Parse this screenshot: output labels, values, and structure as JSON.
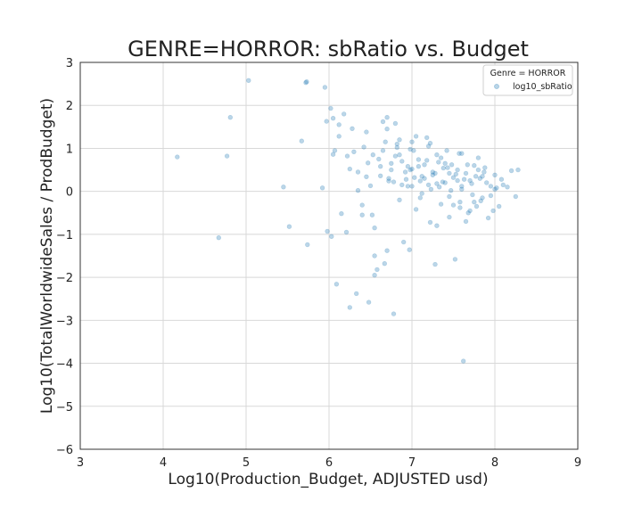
{
  "chart_data": {
    "type": "scatter",
    "title": "GENRE=HORROR: sbRatio vs. Budget",
    "xlabel": "Log10(Production_Budget, ADJUSTED usd)",
    "ylabel": "Log10(TotalWorldwideSales / ProdBudget)",
    "xlim": [
      3,
      9
    ],
    "ylim": [
      -6,
      3
    ],
    "x_ticks": [
      3,
      4,
      5,
      6,
      7,
      8,
      9
    ],
    "y_ticks": [
      -6,
      -5,
      -4,
      -3,
      -2,
      -1,
      0,
      1,
      2,
      3
    ],
    "grid": true,
    "legend": {
      "title": "Genre = HORROR",
      "placement": "top-right",
      "entries": [
        "log10_sbRatio"
      ]
    },
    "colors": {
      "marker": "#1f77b4",
      "grid": "#d8d8d8",
      "axis": "#333333"
    },
    "series": [
      {
        "name": "log10_sbRatio",
        "x": [
          4.17,
          4.67,
          4.77,
          4.81,
          5.03,
          5.45,
          5.52,
          5.67,
          5.72,
          5.73,
          5.74,
          5.92,
          5.95,
          5.97,
          5.98,
          6.02,
          6.03,
          6.05,
          6.07,
          6.09,
          6.12,
          6.15,
          6.18,
          6.21,
          6.25,
          6.28,
          6.3,
          6.33,
          6.35,
          6.4,
          6.42,
          6.45,
          6.47,
          6.48,
          6.5,
          6.52,
          6.55,
          6.58,
          6.62,
          6.65,
          6.67,
          6.7,
          6.72,
          6.75,
          6.78,
          6.8,
          6.82,
          6.85,
          6.88,
          6.9,
          6.93,
          6.95,
          6.97,
          7.0,
          7.02,
          7.05,
          7.08,
          7.1,
          7.12,
          7.15,
          7.18,
          7.2,
          7.22,
          7.25,
          7.28,
          7.3,
          7.33,
          7.35,
          7.38,
          7.4,
          7.42,
          7.45,
          7.48,
          7.5,
          7.52,
          7.55,
          7.58,
          7.6,
          7.62,
          7.65,
          7.68,
          7.7,
          7.72,
          7.75,
          7.78,
          7.8,
          7.82,
          7.85,
          7.88,
          7.9,
          7.92,
          7.95,
          7.98,
          8.0,
          8.02,
          8.05,
          8.08,
          8.1,
          8.15,
          8.2,
          8.25,
          8.28,
          6.05,
          6.12,
          6.22,
          6.35,
          6.45,
          6.55,
          6.62,
          6.68,
          6.72,
          6.75,
          6.82,
          6.88,
          6.92,
          6.98,
          7.03,
          7.08,
          7.12,
          7.18,
          7.23,
          7.28,
          7.32,
          7.37,
          7.43,
          7.47,
          7.53,
          7.57,
          7.63,
          7.67,
          7.73,
          7.77,
          7.83,
          7.87,
          6.7,
          6.85,
          7.0,
          7.15,
          7.3,
          7.45,
          7.6,
          7.75,
          6.6,
          6.78,
          6.95,
          7.1,
          7.25,
          7.4,
          7.55,
          7.7,
          7.85,
          8.0,
          6.25,
          6.4,
          6.55,
          6.7,
          6.85,
          7.0,
          7.2,
          7.35,
          7.5,
          7.65,
          7.8,
          7.95,
          6.8,
          7.05,
          7.3,
          7.45,
          7.6,
          6.98,
          7.22,
          7.58,
          6.53,
          6.65
        ],
        "y": [
          0.8,
          -1.08,
          0.82,
          1.72,
          2.58,
          0.1,
          -0.82,
          1.17,
          2.53,
          2.55,
          -1.24,
          0.08,
          2.42,
          1.63,
          -0.93,
          1.93,
          -1.05,
          0.86,
          0.95,
          -2.16,
          1.28,
          -0.52,
          1.8,
          -0.95,
          0.52,
          1.46,
          0.92,
          -2.38,
          0.02,
          -0.32,
          1.03,
          0.34,
          0.66,
          -2.58,
          0.13,
          -0.55,
          -1.95,
          -1.82,
          0.36,
          0.95,
          -1.68,
          1.72,
          0.24,
          0.5,
          -2.85,
          0.82,
          1.1,
          -0.2,
          0.7,
          -1.18,
          0.28,
          0.58,
          -1.36,
          0.12,
          0.95,
          -0.42,
          0.74,
          0.24,
          -0.05,
          0.62,
          1.25,
          0.15,
          -0.72,
          0.38,
          -1.7,
          0.85,
          0.1,
          -0.3,
          0.54,
          0.2,
          0.95,
          -0.12,
          0.62,
          0.32,
          -1.58,
          0.5,
          -0.25,
          0.12,
          -3.95,
          0.42,
          -0.5,
          0.25,
          0.18,
          0.6,
          -0.35,
          0.78,
          0.3,
          -0.15,
          0.55,
          0.2,
          -0.62,
          0.12,
          -0.45,
          0.38,
          0.08,
          -0.35,
          0.28,
          0.15,
          0.1,
          0.48,
          -0.12,
          0.5,
          1.7,
          1.55,
          0.82,
          0.45,
          1.38,
          -0.85,
          0.58,
          1.15,
          0.3,
          0.65,
          1.02,
          0.15,
          0.45,
          0.98,
          0.32,
          0.58,
          0.35,
          0.72,
          0.05,
          0.42,
          0.68,
          0.22,
          0.55,
          0.02,
          0.4,
          0.88,
          0.28,
          0.62,
          -0.08,
          0.35,
          -0.22,
          0.45,
          1.45,
          0.85,
          0.52,
          0.3,
          0.18,
          0.42,
          0.05,
          -0.25,
          0.75,
          0.22,
          0.12,
          -0.15,
          0.45,
          0.65,
          0.25,
          -0.45,
          0.35,
          0.05,
          -2.7,
          -0.55,
          -1.5,
          -1.38,
          1.2,
          1.15,
          1.05,
          0.78,
          -0.32,
          -0.7,
          0.5,
          -0.1,
          1.58,
          1.28,
          -0.8,
          -0.6,
          0.88,
          0.5,
          1.12,
          -0.38,
          0.85,
          1.62
        ]
      }
    ]
  }
}
